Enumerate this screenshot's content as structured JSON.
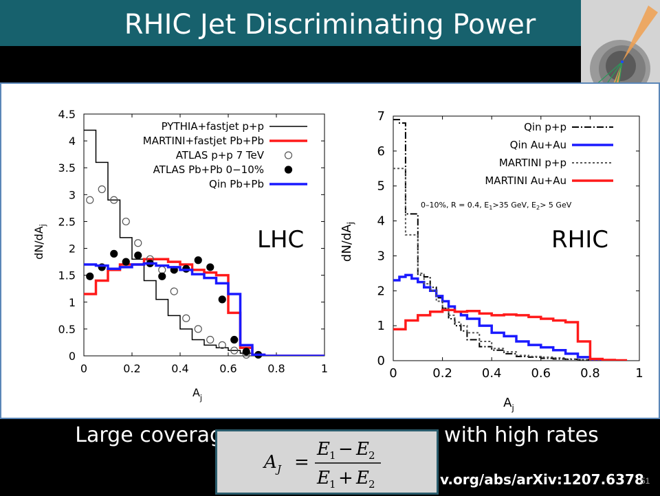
{
  "slide": {
    "title": "RHIC Jet Discriminating Power",
    "caption_left": "Large coverag",
    "caption_right": "with high rates",
    "reference": "v.org/abs/arXiv:1207.6378",
    "slide_number": "51",
    "formula": {
      "lhs": "A",
      "lhs_sub": "J",
      "equals": "=",
      "e": "E",
      "sub1": "1",
      "sub2": "2",
      "minus": "−",
      "plus": "+"
    }
  },
  "colors": {
    "title_bar": "#17616d",
    "red": "#ff1a1a",
    "blue": "#1a1aff",
    "black": "#000000",
    "gray": "#555555"
  },
  "chart_data": [
    {
      "type": "line",
      "panel_label": "LHC",
      "xlabel": "A",
      "xlabel_sub": "j",
      "ylabel": "dN/dA",
      "ylabel_sub": "j",
      "xlim": [
        0,
        1
      ],
      "ylim": [
        0,
        4.5
      ],
      "xticks": [
        "0",
        "0.2",
        "0.4",
        "0.6",
        "0.8",
        "1"
      ],
      "yticks": [
        "0",
        "0.5",
        "1",
        "1.5",
        "2",
        "2.5",
        "3",
        "3.5",
        "4",
        "4.5"
      ],
      "legend_position": "top",
      "series": [
        {
          "name": "PYTHIA+fastjet p+p",
          "style": "step",
          "color": "#000000",
          "width": 1.5,
          "edges": [
            0,
            0.05,
            0.1,
            0.15,
            0.2,
            0.25,
            0.3,
            0.35,
            0.4,
            0.45,
            0.5,
            0.55,
            0.6,
            0.65,
            0.7,
            0.75,
            0.8,
            0.85,
            0.9,
            0.95,
            1.0
          ],
          "values": [
            4.2,
            3.6,
            2.9,
            2.2,
            1.8,
            1.4,
            1.05,
            0.75,
            0.5,
            0.3,
            0.2,
            0.15,
            0.1,
            0.05,
            0.02,
            0.01,
            0.01,
            0,
            0,
            0
          ]
        },
        {
          "name": "MARTINI+fastjet Pb+Pb",
          "style": "step",
          "color": "#ff1a1a",
          "width": 3.5,
          "edges": [
            0,
            0.05,
            0.1,
            0.15,
            0.2,
            0.25,
            0.3,
            0.35,
            0.4,
            0.45,
            0.5,
            0.55,
            0.6,
            0.65,
            0.7,
            0.75,
            0.8,
            0.85,
            0.9,
            0.95,
            1.0
          ],
          "values": [
            1.15,
            1.4,
            1.6,
            1.7,
            1.7,
            1.8,
            1.8,
            1.75,
            1.7,
            1.6,
            1.55,
            1.5,
            0.8,
            0.15,
            0.02,
            0,
            0,
            0,
            0,
            0
          ]
        },
        {
          "name": "ATLAS p+p 7 TeV",
          "style": "open-marker",
          "color": "#555555",
          "x": [
            0.025,
            0.075,
            0.125,
            0.175,
            0.225,
            0.275,
            0.325,
            0.375,
            0.425,
            0.475,
            0.525,
            0.575,
            0.625,
            0.675
          ],
          "y": [
            2.9,
            3.1,
            2.9,
            2.5,
            2.1,
            1.8,
            1.6,
            1.2,
            0.7,
            0.5,
            0.3,
            0.2,
            0.1,
            0.02
          ]
        },
        {
          "name": "ATLAS Pb+Pb 0−10%",
          "style": "filled-marker",
          "color": "#000000",
          "x": [
            0.025,
            0.075,
            0.125,
            0.175,
            0.225,
            0.275,
            0.325,
            0.375,
            0.425,
            0.475,
            0.525,
            0.575,
            0.625,
            0.675,
            0.725
          ],
          "y": [
            1.48,
            1.65,
            1.9,
            1.75,
            1.87,
            1.72,
            1.48,
            1.6,
            1.62,
            1.78,
            1.65,
            1.05,
            0.3,
            0.08,
            0.02
          ]
        },
        {
          "name": "Qin Pb+Pb",
          "style": "step",
          "color": "#1a1aff",
          "width": 3.5,
          "edges": [
            0,
            0.05,
            0.1,
            0.15,
            0.2,
            0.25,
            0.3,
            0.35,
            0.4,
            0.45,
            0.5,
            0.55,
            0.6,
            0.65,
            0.7,
            0.75,
            0.8,
            0.85,
            0.9,
            0.95,
            1.0
          ],
          "values": [
            1.7,
            1.68,
            1.62,
            1.65,
            1.7,
            1.72,
            1.68,
            1.65,
            1.6,
            1.52,
            1.45,
            1.35,
            1.15,
            0.2,
            0.02,
            0,
            0,
            0,
            0,
            0
          ]
        }
      ]
    },
    {
      "type": "line",
      "panel_label": "RHIC",
      "annotation": "0–10%, R = 0.4, E",
      "annotation_sub1": "1",
      "annotation_mid": ">35 GeV, E",
      "annotation_sub2": "2",
      "annotation_end": "> 5 GeV",
      "xlabel": "A",
      "xlabel_sub": "j",
      "ylabel": "dN/dA",
      "ylabel_sub": "j",
      "xlim": [
        0,
        1
      ],
      "ylim": [
        0,
        7
      ],
      "xticks": [
        "0",
        "0.2",
        "0.4",
        "0.6",
        "0.8",
        "1"
      ],
      "yticks": [
        "0",
        "1",
        "2",
        "3",
        "4",
        "5",
        "6",
        "7"
      ],
      "legend_position": "top-right",
      "series": [
        {
          "name": "Qin p+p",
          "style": "step",
          "dash": "10,3,2,3",
          "color": "#000000",
          "width": 2,
          "edges": [
            0,
            0.025,
            0.05,
            0.075,
            0.1,
            0.125,
            0.15,
            0.175,
            0.2,
            0.225,
            0.25,
            0.275,
            0.3,
            0.35,
            0.4,
            0.45,
            0.5,
            0.55,
            0.6,
            0.65,
            0.7,
            0.75,
            0.8,
            0.85
          ],
          "values": [
            6.9,
            6.8,
            4.2,
            4.2,
            2.45,
            2.4,
            2.1,
            1.8,
            1.5,
            1.2,
            1.0,
            0.85,
            0.6,
            0.4,
            0.3,
            0.2,
            0.12,
            0.1,
            0.07,
            0.05,
            0.04,
            0.03,
            0.02
          ]
        },
        {
          "name": "Qin Au+Au",
          "style": "step",
          "color": "#1a1aff",
          "width": 3.5,
          "edges": [
            0,
            0.025,
            0.05,
            0.075,
            0.1,
            0.125,
            0.15,
            0.175,
            0.2,
            0.225,
            0.25,
            0.275,
            0.3,
            0.35,
            0.4,
            0.45,
            0.5,
            0.55,
            0.6,
            0.65,
            0.7,
            0.75,
            0.8,
            0.85
          ],
          "values": [
            2.3,
            2.4,
            2.45,
            2.35,
            2.25,
            2.1,
            2.0,
            1.85,
            1.7,
            1.55,
            1.4,
            1.3,
            1.2,
            1.0,
            0.8,
            0.7,
            0.55,
            0.45,
            0.38,
            0.3,
            0.2,
            0.1,
            0.02
          ]
        },
        {
          "name": "MARTINI p+p",
          "style": "step",
          "dash": "3,3",
          "color": "#555555",
          "width": 2,
          "edges": [
            0,
            0.025,
            0.05,
            0.075,
            0.1,
            0.125,
            0.15,
            0.175,
            0.2,
            0.225,
            0.25,
            0.275,
            0.3,
            0.35,
            0.4,
            0.45,
            0.5,
            0.55,
            0.6,
            0.65,
            0.7,
            0.75,
            0.8,
            0.85
          ],
          "values": [
            5.5,
            5.5,
            3.6,
            3.6,
            2.5,
            2.2,
            2.0,
            1.7,
            1.5,
            1.3,
            1.1,
            1.0,
            0.8,
            0.55,
            0.35,
            0.25,
            0.15,
            0.12,
            0.1,
            0.08,
            0.05,
            0.03,
            0.02
          ]
        },
        {
          "name": "MARTINI Au+Au",
          "style": "step",
          "color": "#ff1a1a",
          "width": 3.5,
          "edges": [
            0,
            0.05,
            0.1,
            0.15,
            0.2,
            0.25,
            0.3,
            0.35,
            0.4,
            0.45,
            0.5,
            0.55,
            0.6,
            0.65,
            0.7,
            0.75,
            0.8,
            0.85,
            0.9,
            0.95
          ],
          "values": [
            0.9,
            1.15,
            1.3,
            1.4,
            1.45,
            1.4,
            1.42,
            1.35,
            1.3,
            1.32,
            1.3,
            1.25,
            1.2,
            1.15,
            1.1,
            0.55,
            0.05,
            0.02,
            0.01
          ]
        }
      ]
    }
  ]
}
